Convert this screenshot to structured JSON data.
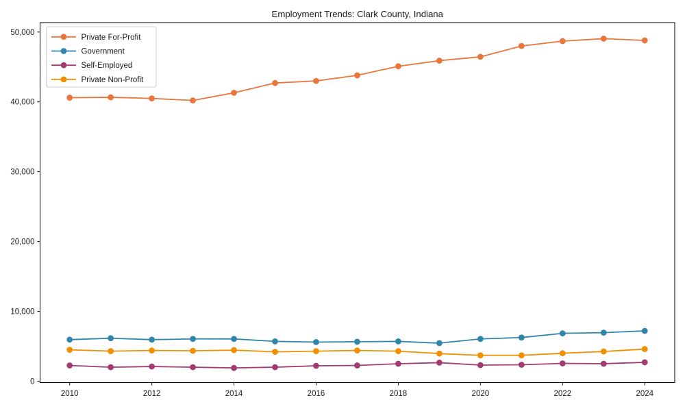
{
  "window": {
    "background": "#ffffff",
    "text_color": "#1a1a1a",
    "axes_color": "#000000"
  },
  "chart_data": {
    "type": "line",
    "title": "Employment Trends: Clark County, Indiana",
    "xlabel": "",
    "ylabel": "",
    "grid": false,
    "legend_position": "upper left",
    "marker": "circle",
    "x": [
      2010,
      2011,
      2012,
      2013,
      2014,
      2015,
      2016,
      2017,
      2018,
      2019,
      2020,
      2021,
      2022,
      2023,
      2024
    ],
    "series": [
      {
        "name": "Private For-Profit",
        "color": "#E8763E",
        "values": [
          40600,
          40650,
          40500,
          40200,
          41300,
          42700,
          43000,
          43800,
          45100,
          45900,
          46450,
          48000,
          48700,
          49050,
          48800
        ]
      },
      {
        "name": "Government",
        "color": "#2E86AB",
        "values": [
          5950,
          6150,
          5950,
          6050,
          6050,
          5700,
          5600,
          5650,
          5700,
          5450,
          6050,
          6250,
          6850,
          6950,
          7200
        ]
      },
      {
        "name": "Self-Employed",
        "color": "#A23B72",
        "values": [
          2250,
          2000,
          2100,
          2000,
          1900,
          2000,
          2200,
          2250,
          2500,
          2650,
          2300,
          2350,
          2550,
          2500,
          2700
        ]
      },
      {
        "name": "Private Non-Profit",
        "color": "#F18F01",
        "values": [
          4500,
          4300,
          4400,
          4350,
          4450,
          4200,
          4300,
          4400,
          4300,
          3950,
          3700,
          3700,
          4000,
          4250,
          4600
        ]
      }
    ],
    "xlim": [
      2009.28,
      2024.73
    ],
    "ylim": [
      -200,
      51350
    ],
    "x_ticks": [
      2010,
      2012,
      2014,
      2016,
      2018,
      2020,
      2022,
      2024
    ],
    "x_tick_labels": [
      "2010",
      "2012",
      "2014",
      "2016",
      "2018",
      "2020",
      "2022",
      "2024"
    ],
    "y_ticks": [
      0,
      10000,
      20000,
      30000,
      40000,
      50000
    ],
    "y_tick_labels": [
      "0",
      "10,000",
      "20,000",
      "30,000",
      "40,000",
      "50,000"
    ],
    "legend_border_color": "#cccccc"
  }
}
